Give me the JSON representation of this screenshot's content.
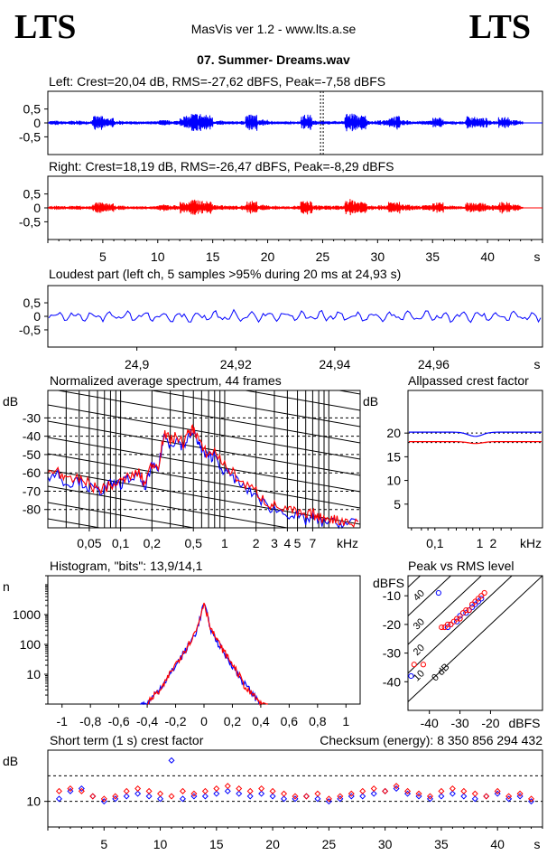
{
  "header": {
    "logo_left": "LTS",
    "logo_right": "LTS",
    "app_title": "MasVis ver 1.2 - www.lts.a.se",
    "file_title": "07. Summer- Dreams.wav"
  },
  "colors": {
    "left": "#0000ff",
    "right": "#ff0000",
    "axis": "#000000"
  },
  "chart_data": [
    {
      "id": "left-waveform",
      "type": "line",
      "title": "Left: Crest=20,04 dB, RMS=-27,62 dBFS, Peak=-7,58 dBFS",
      "yticks": [
        "0,5",
        "0",
        "-0,5"
      ],
      "ylim": [
        -1,
        1
      ],
      "xlim": [
        0,
        45
      ],
      "marker_at_s": 24.93,
      "envelope": [
        0.08,
        0.06,
        0.08,
        0.06,
        0.25,
        0.18,
        0.08,
        0.06,
        0.05,
        0.06,
        0.1,
        0.08,
        0.25,
        0.35,
        0.3,
        0.08,
        0.06,
        0.07,
        0.3,
        0.12,
        0.06,
        0.05,
        0.06,
        0.3,
        0.08,
        0.06,
        0.06,
        0.35,
        0.28,
        0.08,
        0.1,
        0.25,
        0.1,
        0.06,
        0.08,
        0.2,
        0.06,
        0.05,
        0.25,
        0.18,
        0.08,
        0.25,
        0.1,
        0.05,
        0.05
      ]
    },
    {
      "id": "right-waveform",
      "type": "line",
      "title": "Right: Crest=18,19 dB, RMS=-26,47 dBFS, Peak=-8,29 dBFS",
      "yticks": [
        "0,5",
        "0",
        "-0,5"
      ],
      "ylim": [
        -1,
        1
      ],
      "xlim": [
        0,
        45
      ],
      "xticks": [
        "5",
        "10",
        "15",
        "20",
        "25",
        "30",
        "35",
        "40"
      ],
      "xunit": "s",
      "envelope": [
        0.08,
        0.06,
        0.08,
        0.06,
        0.2,
        0.16,
        0.08,
        0.06,
        0.06,
        0.06,
        0.12,
        0.1,
        0.22,
        0.3,
        0.25,
        0.1,
        0.08,
        0.08,
        0.25,
        0.12,
        0.08,
        0.06,
        0.08,
        0.25,
        0.1,
        0.08,
        0.08,
        0.32,
        0.25,
        0.1,
        0.1,
        0.22,
        0.12,
        0.08,
        0.1,
        0.2,
        0.08,
        0.06,
        0.22,
        0.18,
        0.1,
        0.22,
        0.12,
        0.05,
        0.05
      ]
    },
    {
      "id": "loudest-part",
      "type": "line",
      "title": "Loudest part (left  ch, 5 samples >95% during 20 ms at 24,93 s)",
      "yticks": [
        "0,5",
        "0",
        "-0,5"
      ],
      "ylim": [
        -1,
        1
      ],
      "xticks": [
        "24,9",
        "24,92",
        "24,94",
        "24,96"
      ],
      "xunit": "s",
      "xlim": [
        24.882,
        24.982
      ]
    },
    {
      "id": "spectrum",
      "type": "line",
      "title": "Normalized average spectrum, 44 frames",
      "ylabel": "dB",
      "yticks": [
        "-30",
        "-40",
        "-50",
        "-60",
        "-70",
        "-80"
      ],
      "ylim": [
        -90,
        -15
      ],
      "xticks": [
        "0,05",
        "0,1",
        "0,2",
        "0,5",
        "1",
        "2",
        "3",
        "4",
        "5",
        "7"
      ],
      "xunit": "kHz",
      "xlim": [
        0.02,
        20
      ],
      "series": [
        {
          "color": "blue",
          "x": [
            0.02,
            0.025,
            0.03,
            0.04,
            0.05,
            0.06,
            0.07,
            0.08,
            0.1,
            0.12,
            0.15,
            0.17,
            0.2,
            0.23,
            0.26,
            0.3,
            0.35,
            0.4,
            0.45,
            0.5,
            0.55,
            0.6,
            0.7,
            0.8,
            1,
            1.2,
            1.5,
            2,
            2.5,
            3,
            4,
            5,
            6,
            7,
            8,
            10,
            12,
            15,
            20
          ],
          "y": [
            -62,
            -60,
            -66,
            -64,
            -68,
            -70,
            -69,
            -66,
            -66,
            -63,
            -62,
            -68,
            -57,
            -58,
            -40,
            -44,
            -42,
            -46,
            -40,
            -38,
            -42,
            -48,
            -52,
            -50,
            -60,
            -62,
            -68,
            -72,
            -78,
            -80,
            -82,
            -84,
            -86,
            -84,
            -87,
            -86,
            -88,
            -88,
            -86
          ]
        },
        {
          "color": "red",
          "x": [
            0.02,
            0.025,
            0.03,
            0.04,
            0.05,
            0.06,
            0.07,
            0.08,
            0.1,
            0.12,
            0.15,
            0.17,
            0.2,
            0.23,
            0.26,
            0.3,
            0.35,
            0.4,
            0.45,
            0.5,
            0.55,
            0.6,
            0.7,
            0.8,
            1,
            1.2,
            1.5,
            2,
            2.5,
            3,
            4,
            5,
            6,
            7,
            8,
            10,
            12,
            15,
            20
          ],
          "y": [
            -60,
            -58,
            -65,
            -63,
            -66,
            -69,
            -68,
            -67,
            -65,
            -62,
            -60,
            -66,
            -55,
            -56,
            -39,
            -42,
            -40,
            -44,
            -38,
            -36,
            -40,
            -46,
            -50,
            -48,
            -56,
            -60,
            -66,
            -70,
            -76,
            -78,
            -80,
            -82,
            -84,
            -82,
            -85,
            -84,
            -86,
            -86,
            -88
          ]
        }
      ]
    },
    {
      "id": "allpassed-crest",
      "type": "line",
      "title": "Allpassed crest factor",
      "ylabel": "dB",
      "yticks": [
        "20",
        "15",
        "10",
        "5"
      ],
      "ylim": [
        0,
        29
      ],
      "xticks": [
        "0,1",
        "1",
        "2"
      ],
      "xunit": "kHz",
      "series": [
        {
          "color": "blue",
          "y_start": 20.2,
          "y_dip": 19.3,
          "dip_at_khz": 0.8
        },
        {
          "color": "red",
          "y_start": 18.2,
          "y_dip": 17.8,
          "dip_at_khz": 0.8
        }
      ]
    },
    {
      "id": "histogram",
      "type": "line",
      "title": "Histogram, \"bits\": 13,9/14,1",
      "ylabel": "n",
      "yticks": [
        "1000",
        "100",
        "10"
      ],
      "ylim": [
        1,
        20000
      ],
      "xticks": [
        "-1",
        "-0,8",
        "-0,6",
        "-0,4",
        "-0,2",
        "0",
        "0,2",
        "0,4",
        "0,6",
        "0,8",
        "1"
      ],
      "xlim": [
        -1.1,
        1.1
      ],
      "series": [
        {
          "color": "blue",
          "x": [
            -0.45,
            -0.4,
            -0.35,
            -0.3,
            -0.25,
            -0.2,
            -0.15,
            -0.1,
            -0.05,
            0,
            0.05,
            0.1,
            0.15,
            0.2,
            0.25,
            0.3,
            0.35,
            0.4
          ],
          "y": [
            1,
            1,
            2,
            4,
            8,
            20,
            45,
            110,
            300,
            2500,
            300,
            110,
            45,
            20,
            8,
            4,
            2,
            1
          ]
        },
        {
          "color": "red",
          "x": [
            -0.4,
            -0.35,
            -0.3,
            -0.25,
            -0.2,
            -0.15,
            -0.1,
            -0.05,
            0,
            0.05,
            0.1,
            0.15,
            0.2,
            0.25,
            0.3,
            0.35,
            0.4,
            0.45
          ],
          "y": [
            1,
            2,
            3,
            9,
            22,
            50,
            120,
            330,
            2600,
            330,
            120,
            50,
            22,
            9,
            3,
            2,
            1,
            1
          ]
        }
      ]
    },
    {
      "id": "peak-vs-rms",
      "type": "scatter",
      "title": "Peak vs RMS level",
      "ylabel": "dBFS",
      "yticks": [
        "-10",
        "-20",
        "-30",
        "-40"
      ],
      "ylim": [
        -50,
        -3
      ],
      "xticks": [
        "-40",
        "-30",
        "-20"
      ],
      "xlabel": "dBFS",
      "xlim": [
        -47,
        -3
      ],
      "diagonal_labels": [
        "40",
        "30",
        "20",
        "10",
        "0 dB"
      ],
      "series": [
        {
          "color": "blue",
          "points": [
            [
              -46,
              -38
            ],
            [
              -37,
              -9
            ],
            [
              -34,
              -21
            ],
            [
              -33,
              -20
            ],
            [
              -31,
              -19
            ],
            [
              -30,
              -17
            ],
            [
              -28,
              -16
            ],
            [
              -27,
              -15
            ],
            [
              -26,
              -14
            ],
            [
              -25,
              -13
            ],
            [
              -24,
              -12
            ],
            [
              -23,
              -11
            ]
          ]
        },
        {
          "color": "red",
          "points": [
            [
              -45,
              -34
            ],
            [
              -42,
              -34
            ],
            [
              -36,
              -21
            ],
            [
              -35,
              -21
            ],
            [
              -34,
              -20
            ],
            [
              -33,
              -20
            ],
            [
              -32,
              -19
            ],
            [
              -31,
              -18
            ],
            [
              -30,
              -18
            ],
            [
              -29,
              -16
            ],
            [
              -28,
              -15
            ],
            [
              -27,
              -15
            ],
            [
              -26,
              -13
            ],
            [
              -25,
              -12
            ],
            [
              -24,
              -11
            ],
            [
              -23,
              -10
            ],
            [
              -22,
              -9
            ]
          ]
        }
      ]
    },
    {
      "id": "short-term-crest",
      "type": "scatter",
      "title": "Short term (1 s) crest factor",
      "checksum": "Checksum (energy):  8 350 856 294 432",
      "ylabel": "dB",
      "yticks": [
        "10"
      ],
      "ylim": [
        0,
        30
      ],
      "dashed_at": [
        10,
        20
      ],
      "xticks": [
        "5",
        "10",
        "15",
        "20",
        "25",
        "30",
        "35",
        "40"
      ],
      "xunit": "s",
      "xlim": [
        0,
        44
      ],
      "series": [
        {
          "color": "blue",
          "values": [
            11,
            14,
            15,
            12,
            10,
            11,
            12,
            13,
            12,
            11,
            26,
            11,
            12,
            12,
            13,
            14,
            13,
            12,
            13,
            12,
            11,
            11,
            12,
            11,
            10,
            11,
            12,
            12,
            13,
            14,
            15,
            13,
            12,
            11,
            12,
            13,
            12,
            11,
            12,
            13,
            11,
            12,
            10
          ]
        },
        {
          "color": "red",
          "values": [
            14,
            15,
            14,
            12,
            11,
            12,
            14,
            15,
            14,
            13,
            12,
            14,
            13,
            14,
            15,
            16,
            15,
            14,
            15,
            14,
            13,
            12,
            12,
            13,
            11,
            12,
            13,
            14,
            15,
            14,
            16,
            14,
            13,
            12,
            14,
            15,
            14,
            13,
            12,
            14,
            12,
            13,
            11
          ]
        }
      ]
    }
  ]
}
